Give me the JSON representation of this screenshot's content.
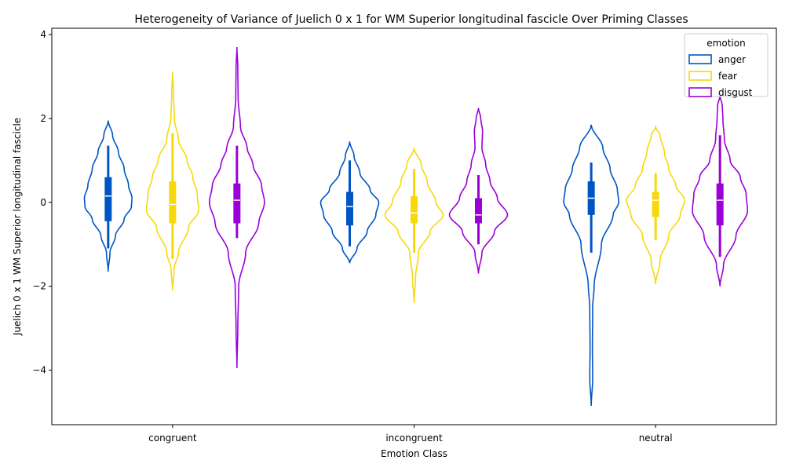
{
  "chart_data": {
    "type": "violin",
    "title": "Heterogeneity of Variance of Juelich 0 x 1 for WM Superior longitudinal fascicle Over Priming Classes",
    "xlabel": "Emotion Class",
    "ylabel": "Juelich 0 x 1 WM Superior longitudinal fascicle",
    "categories": [
      "congruent",
      "incongruent",
      "neutral"
    ],
    "ylim": [
      -5.3,
      4.15
    ],
    "yticks": [
      -4,
      -2,
      0,
      2,
      4
    ],
    "legend": {
      "title": "emotion",
      "position": "upper-right"
    },
    "series": [
      {
        "name": "anger",
        "color": "#0055c4",
        "groups": [
          {
            "min": -1.65,
            "max": 1.95,
            "q1": -0.45,
            "median": 0.15,
            "q3": 0.6,
            "whisker_low": -1.1,
            "whisker_high": 1.35,
            "profile": [
              [
                -1.65,
                0.0
              ],
              [
                -1.2,
                0.06
              ],
              [
                -0.8,
                0.25
              ],
              [
                -0.4,
                0.55
              ],
              [
                -0.1,
                0.8
              ],
              [
                0.1,
                0.82
              ],
              [
                0.4,
                0.7
              ],
              [
                0.8,
                0.55
              ],
              [
                1.2,
                0.35
              ],
              [
                1.6,
                0.15
              ],
              [
                1.95,
                0.0
              ]
            ]
          },
          {
            "min": -1.45,
            "max": 1.45,
            "q1": -0.55,
            "median": -0.1,
            "q3": 0.25,
            "whisker_low": -1.05,
            "whisker_high": 1.0,
            "profile": [
              [
                -1.45,
                0.0
              ],
              [
                -1.1,
                0.25
              ],
              [
                -0.7,
                0.6
              ],
              [
                -0.3,
                0.9
              ],
              [
                0.0,
                1.0
              ],
              [
                0.3,
                0.7
              ],
              [
                0.7,
                0.35
              ],
              [
                1.1,
                0.15
              ],
              [
                1.45,
                0.0
              ]
            ]
          },
          {
            "min": -4.85,
            "max": 1.85,
            "q1": -0.3,
            "median": 0.1,
            "q3": 0.5,
            "whisker_low": -1.2,
            "whisker_high": 0.95,
            "profile": [
              [
                -4.85,
                0.0
              ],
              [
                -4.2,
                0.05
              ],
              [
                -3.5,
                0.04
              ],
              [
                -2.5,
                0.05
              ],
              [
                -2.0,
                0.1
              ],
              [
                -1.0,
                0.35
              ],
              [
                -0.3,
                0.75
              ],
              [
                0.0,
                0.95
              ],
              [
                0.3,
                0.9
              ],
              [
                0.8,
                0.65
              ],
              [
                1.3,
                0.4
              ],
              [
                1.85,
                0.0
              ]
            ]
          }
        ]
      },
      {
        "name": "fear",
        "color": "#f7d90a",
        "groups": [
          {
            "min": -2.1,
            "max": 3.1,
            "q1": -0.5,
            "median": -0.05,
            "q3": 0.5,
            "whisker_low": -1.35,
            "whisker_high": 1.65,
            "profile": [
              [
                -2.1,
                0.0
              ],
              [
                -1.6,
                0.05
              ],
              [
                -1.2,
                0.2
              ],
              [
                -0.6,
                0.55
              ],
              [
                -0.2,
                0.9
              ],
              [
                0.2,
                0.85
              ],
              [
                0.6,
                0.7
              ],
              [
                1.0,
                0.5
              ],
              [
                1.5,
                0.2
              ],
              [
                2.0,
                0.06
              ],
              [
                2.6,
                0.03
              ],
              [
                3.1,
                0.0
              ]
            ]
          },
          {
            "min": -2.4,
            "max": 1.3,
            "q1": -0.5,
            "median": -0.25,
            "q3": 0.15,
            "whisker_low": -1.2,
            "whisker_high": 0.8,
            "profile": [
              [
                -2.4,
                0.0
              ],
              [
                -1.8,
                0.05
              ],
              [
                -1.2,
                0.15
              ],
              [
                -0.7,
                0.55
              ],
              [
                -0.3,
                1.0
              ],
              [
                0.0,
                0.75
              ],
              [
                0.5,
                0.45
              ],
              [
                0.9,
                0.25
              ],
              [
                1.3,
                0.0
              ]
            ]
          },
          {
            "min": -1.95,
            "max": 1.8,
            "q1": -0.35,
            "median": 0.05,
            "q3": 0.25,
            "whisker_low": -0.9,
            "whisker_high": 0.7,
            "profile": [
              [
                -1.95,
                0.0
              ],
              [
                -1.4,
                0.15
              ],
              [
                -0.8,
                0.45
              ],
              [
                -0.3,
                0.85
              ],
              [
                0.05,
                1.0
              ],
              [
                0.4,
                0.7
              ],
              [
                0.8,
                0.45
              ],
              [
                1.2,
                0.3
              ],
              [
                1.6,
                0.15
              ],
              [
                1.8,
                0.0
              ]
            ]
          }
        ]
      },
      {
        "name": "disgust",
        "color": "#9b00d9",
        "groups": [
          {
            "min": -3.95,
            "max": 3.7,
            "q1": -0.5,
            "median": 0.05,
            "q3": 0.45,
            "whisker_low": -0.85,
            "whisker_high": 1.35,
            "profile": [
              [
                -3.95,
                0.0
              ],
              [
                -3.0,
                0.03
              ],
              [
                -2.0,
                0.06
              ],
              [
                -1.2,
                0.3
              ],
              [
                -0.5,
                0.75
              ],
              [
                0.0,
                0.95
              ],
              [
                0.4,
                0.85
              ],
              [
                0.9,
                0.55
              ],
              [
                1.3,
                0.35
              ],
              [
                1.8,
                0.12
              ],
              [
                2.5,
                0.04
              ],
              [
                3.2,
                0.03
              ],
              [
                3.7,
                0.0
              ]
            ]
          },
          {
            "min": -1.7,
            "max": 2.25,
            "q1": -0.5,
            "median": -0.3,
            "q3": 0.1,
            "whisker_low": -1.0,
            "whisker_high": 0.65,
            "profile": [
              [
                -1.7,
                0.0
              ],
              [
                -1.2,
                0.12
              ],
              [
                -0.7,
                0.55
              ],
              [
                -0.3,
                1.0
              ],
              [
                0.1,
                0.65
              ],
              [
                0.5,
                0.4
              ],
              [
                0.9,
                0.25
              ],
              [
                1.3,
                0.12
              ],
              [
                1.7,
                0.14
              ],
              [
                2.0,
                0.08
              ],
              [
                2.25,
                0.0
              ]
            ]
          },
          {
            "min": -2.0,
            "max": 2.55,
            "q1": -0.55,
            "median": 0.05,
            "q3": 0.45,
            "whisker_low": -1.3,
            "whisker_high": 1.6,
            "profile": [
              [
                -2.0,
                0.0
              ],
              [
                -1.5,
                0.12
              ],
              [
                -0.8,
                0.55
              ],
              [
                -0.2,
                0.95
              ],
              [
                0.2,
                0.9
              ],
              [
                0.6,
                0.7
              ],
              [
                1.0,
                0.35
              ],
              [
                1.5,
                0.15
              ],
              [
                2.0,
                0.1
              ],
              [
                2.3,
                0.08
              ],
              [
                2.55,
                0.0
              ]
            ]
          }
        ]
      }
    ]
  }
}
